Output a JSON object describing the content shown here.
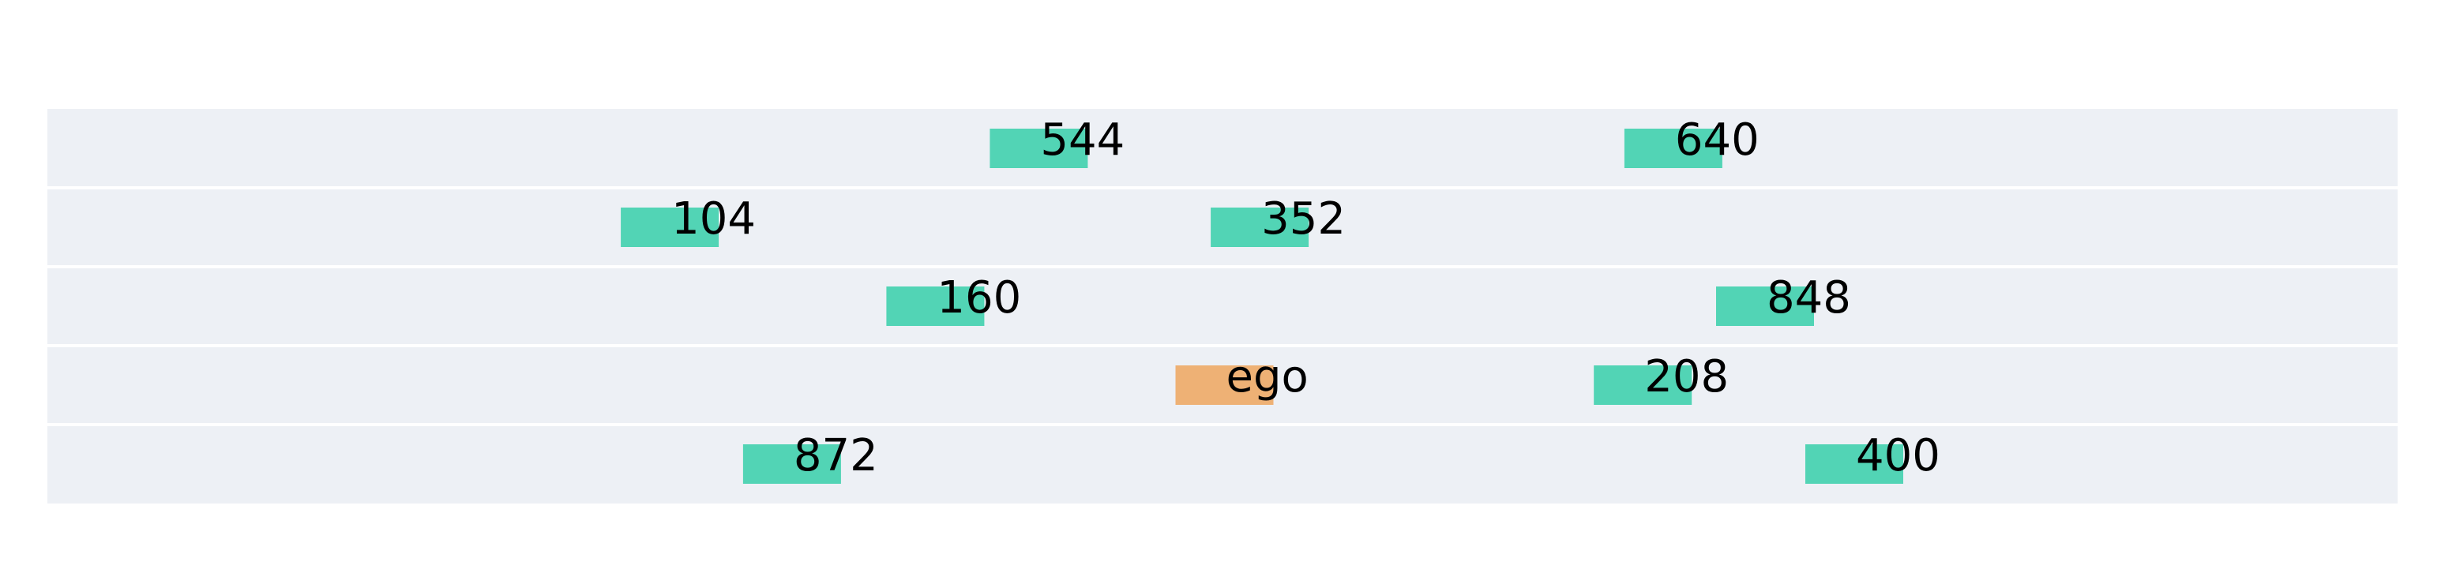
{
  "colors": {
    "background": "#ffffff",
    "lane": "#edf0f5",
    "divider": "#ffffff",
    "vehicle": "#52d4b5",
    "ego": "#eeb175"
  },
  "scene": {
    "lane_count": 5,
    "vehicles": [
      {
        "label": "544",
        "lane": 0,
        "x": 0.401,
        "kind": "vehicle"
      },
      {
        "label": "640",
        "lane": 0,
        "x": 0.671,
        "kind": "vehicle"
      },
      {
        "label": "104",
        "lane": 1,
        "x": 0.244,
        "kind": "vehicle"
      },
      {
        "label": "352",
        "lane": 1,
        "x": 0.495,
        "kind": "vehicle"
      },
      {
        "label": "160",
        "lane": 2,
        "x": 0.357,
        "kind": "vehicle"
      },
      {
        "label": "848",
        "lane": 2,
        "x": 0.71,
        "kind": "vehicle"
      },
      {
        "label": "ego",
        "lane": 3,
        "x": 0.48,
        "kind": "ego"
      },
      {
        "label": "208",
        "lane": 3,
        "x": 0.658,
        "kind": "vehicle"
      },
      {
        "label": "872",
        "lane": 4,
        "x": 0.296,
        "kind": "vehicle"
      },
      {
        "label": "400",
        "lane": 4,
        "x": 0.748,
        "kind": "vehicle"
      }
    ]
  }
}
